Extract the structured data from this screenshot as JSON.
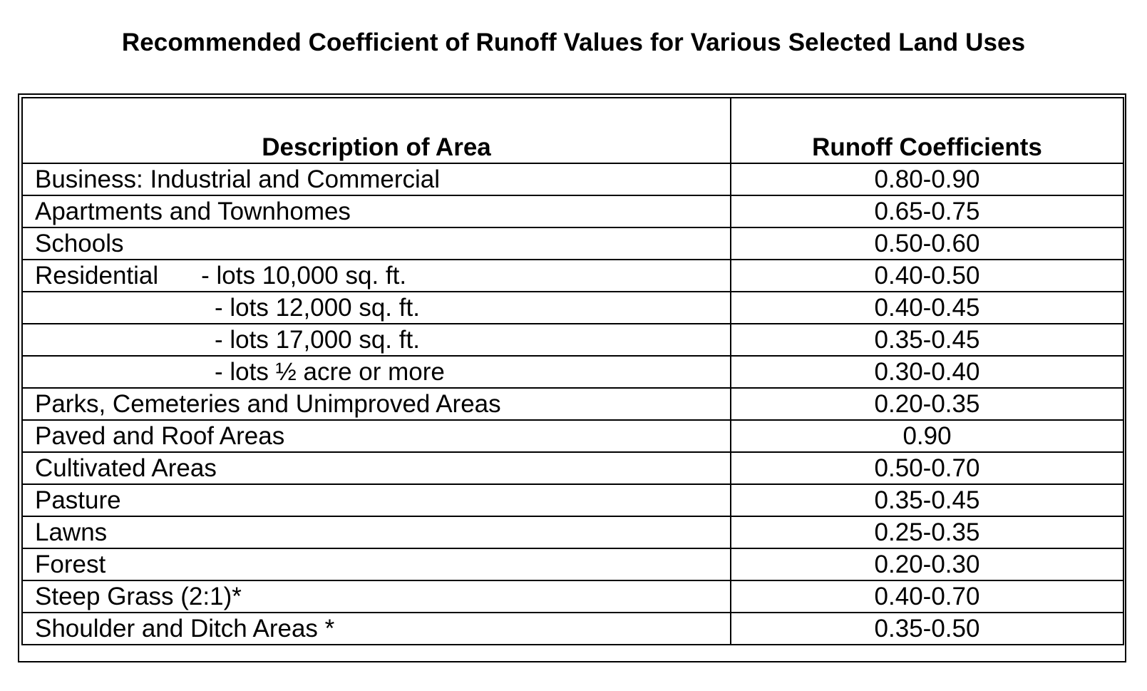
{
  "title": "Recommended Coefficient of Runoff Values for Various Selected Land Uses",
  "table": {
    "headers": {
      "description": "Description of Area",
      "coefficients": "Runoff Coefficients"
    },
    "rows": [
      {
        "description": "Business:  Industrial and Commercial",
        "coefficient": "0.80-0.90"
      },
      {
        "description": "Apartments and Townhomes",
        "coefficient": "0.65-0.75"
      },
      {
        "description": "Schools",
        "coefficient": "0.50-0.60"
      },
      {
        "description": "Residential",
        "sub": "- lots 10,000 sq. ft.",
        "coefficient": "0.40-0.50"
      },
      {
        "description": "",
        "sub": "- lots 12,000 sq. ft.",
        "coefficient": "0.40-0.45"
      },
      {
        "description": "",
        "sub": "- lots 17,000 sq. ft.",
        "coefficient": "0.35-0.45"
      },
      {
        "description": "",
        "sub": "- lots ½ acre or more",
        "coefficient": "0.30-0.40"
      },
      {
        "description": "Parks, Cemeteries and Unimproved Areas",
        "coefficient": "0.20-0.35"
      },
      {
        "description": "Paved and Roof Areas",
        "coefficient": "0.90"
      },
      {
        "description": "Cultivated Areas",
        "coefficient": "0.50-0.70"
      },
      {
        "description": "Pasture",
        "coefficient": "0.35-0.45"
      },
      {
        "description": "Lawns",
        "coefficient": "0.25-0.35"
      },
      {
        "description": "Forest",
        "coefficient": "0.20-0.30"
      },
      {
        "description": "Steep Grass (2:1)*",
        "coefficient": "0.40-0.70"
      },
      {
        "description": "Shoulder and Ditch Areas *",
        "coefficient": "0.35-0.50"
      }
    ]
  }
}
